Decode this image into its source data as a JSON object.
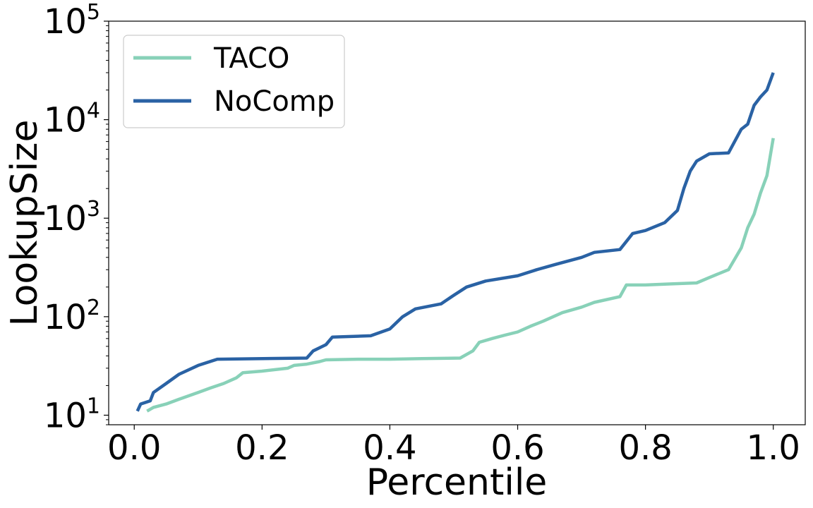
{
  "chart_data": {
    "type": "line",
    "title": "",
    "xlabel": "Percentile",
    "ylabel": "LookupSize",
    "xlim": [
      -0.04,
      1.05
    ],
    "ylim": [
      8,
      100000
    ],
    "yscale": "log",
    "grid": false,
    "legend_position": "top-left",
    "x_ticks": [
      0.0,
      0.2,
      0.4,
      0.6,
      0.8,
      1.0
    ],
    "x_tick_labels": [
      "0.0",
      "0.2",
      "0.4",
      "0.6",
      "0.8",
      "1.0"
    ],
    "y_ticks": [
      10,
      100,
      1000,
      10000,
      100000
    ],
    "y_tick_labels": [
      {
        "base": "10",
        "exp": "1"
      },
      {
        "base": "10",
        "exp": "2"
      },
      {
        "base": "10",
        "exp": "3"
      },
      {
        "base": "10",
        "exp": "4"
      },
      {
        "base": "10",
        "exp": "5"
      }
    ],
    "series": [
      {
        "name": "TACO",
        "color": "#88d1b8",
        "x": [
          0.02,
          0.03,
          0.05,
          0.07,
          0.1,
          0.12,
          0.14,
          0.16,
          0.17,
          0.2,
          0.24,
          0.25,
          0.27,
          0.29,
          0.3,
          0.35,
          0.4,
          0.45,
          0.51,
          0.53,
          0.54,
          0.56,
          0.58,
          0.6,
          0.62,
          0.64,
          0.67,
          0.7,
          0.72,
          0.76,
          0.77,
          0.8,
          0.84,
          0.88,
          0.9,
          0.93,
          0.95,
          0.96,
          0.97,
          0.98,
          0.99,
          1.0
        ],
        "values": [
          11,
          12,
          13,
          14.5,
          17,
          19,
          21,
          24,
          27,
          28,
          30,
          32,
          33,
          35,
          36.5,
          37,
          37,
          37.5,
          38,
          45,
          55,
          60,
          65,
          70,
          80,
          90,
          110,
          125,
          140,
          160,
          210,
          210,
          215,
          220,
          250,
          300,
          500,
          800,
          1100,
          1800,
          2700,
          6500
        ]
      },
      {
        "name": "NoComp",
        "color": "#2a62a4",
        "x": [
          0.005,
          0.01,
          0.025,
          0.03,
          0.05,
          0.07,
          0.1,
          0.13,
          0.27,
          0.28,
          0.3,
          0.31,
          0.37,
          0.4,
          0.42,
          0.44,
          0.48,
          0.5,
          0.52,
          0.55,
          0.6,
          0.63,
          0.66,
          0.7,
          0.72,
          0.76,
          0.78,
          0.8,
          0.83,
          0.85,
          0.86,
          0.87,
          0.88,
          0.9,
          0.93,
          0.95,
          0.96,
          0.97,
          0.98,
          0.99,
          1.0
        ],
        "values": [
          11,
          13,
          14,
          17,
          21,
          26,
          32,
          37,
          38,
          45,
          52,
          62,
          64,
          75,
          100,
          120,
          135,
          165,
          200,
          230,
          260,
          300,
          340,
          400,
          450,
          480,
          700,
          750,
          900,
          1200,
          2000,
          3000,
          3800,
          4500,
          4600,
          8000,
          9000,
          14000,
          17000,
          20000,
          30000
        ]
      }
    ]
  }
}
